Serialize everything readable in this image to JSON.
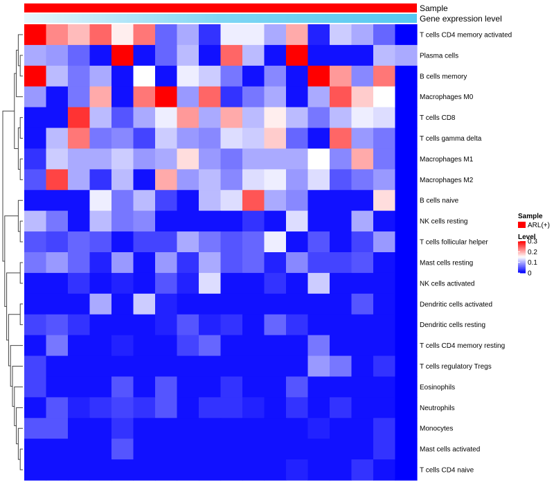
{
  "chart_data": {
    "type": "heatmap",
    "annotation_tracks": [
      {
        "name": "Sample",
        "color": "#ff0000"
      },
      {
        "name": "Gene expression level",
        "gradient": [
          "#e8f6fc",
          "#7fd6f4",
          "#55c8f0"
        ]
      }
    ],
    "rows": [
      "T cells CD4 memory activated",
      "Plasma cells",
      "B cells memory",
      "Macrophages M0",
      "T cells CD8",
      "T cells gamma delta",
      "Macrophages M1",
      "Macrophages M2",
      "B cells naive",
      "NK cells resting",
      "T cells follicular helper",
      "Mast cells resting",
      "NK cells activated",
      "Dendritic cells activated",
      "Dendritic cells resting",
      "T cells CD4 memory resting",
      "T cells regulatory  Tregs",
      "Eosinophils",
      "Neutrophils",
      "Monocytes",
      "Mast cells activated",
      "T cells CD4 naive"
    ],
    "n_columns": 18,
    "values": [
      [
        0.3,
        0.22,
        0.19,
        0.24,
        0.16,
        0.23,
        0.06,
        0.1,
        0.03,
        0.14,
        0.14,
        0.1,
        0.2,
        0.02,
        0.12,
        0.1,
        0.06,
        0.0
      ],
      [
        0.1,
        0.09,
        0.06,
        0.01,
        0.3,
        0.01,
        0.06,
        0.11,
        0.01,
        0.24,
        0.11,
        0.01,
        0.3,
        0.01,
        0.01,
        0.01,
        0.11,
        0.1
      ],
      [
        0.3,
        0.11,
        0.07,
        0.1,
        0.01,
        0.15,
        0.01,
        0.14,
        0.12,
        0.07,
        0.01,
        0.08,
        0.01,
        0.3,
        0.21,
        0.08,
        0.23,
        0.0
      ],
      [
        0.09,
        0.01,
        0.07,
        0.2,
        0.01,
        0.23,
        0.3,
        0.09,
        0.24,
        0.03,
        0.07,
        0.1,
        0.01,
        0.1,
        0.25,
        0.18,
        0.15,
        0.0
      ],
      [
        0.01,
        0.01,
        0.27,
        0.11,
        0.05,
        0.1,
        0.14,
        0.21,
        0.1,
        0.2,
        0.11,
        0.16,
        0.11,
        0.07,
        0.11,
        0.14,
        0.13,
        0.0
      ],
      [
        0.01,
        0.11,
        0.23,
        0.07,
        0.08,
        0.04,
        0.12,
        0.09,
        0.08,
        0.13,
        0.12,
        0.18,
        0.06,
        0.01,
        0.24,
        0.09,
        0.07,
        0.0
      ],
      [
        0.03,
        0.12,
        0.1,
        0.1,
        0.12,
        0.09,
        0.1,
        0.17,
        0.09,
        0.07,
        0.1,
        0.1,
        0.1,
        0.15,
        0.08,
        0.2,
        0.07,
        0.0
      ],
      [
        0.05,
        0.26,
        0.1,
        0.03,
        0.11,
        0.01,
        0.2,
        0.09,
        0.11,
        0.08,
        0.13,
        0.14,
        0.09,
        0.13,
        0.05,
        0.07,
        0.09,
        0.0
      ],
      [
        0.01,
        0.01,
        0.01,
        0.14,
        0.07,
        0.11,
        0.04,
        0.01,
        0.11,
        0.13,
        0.25,
        0.1,
        0.08,
        0.01,
        0.01,
        0.01,
        0.17,
        0.0
      ],
      [
        0.11,
        0.07,
        0.01,
        0.11,
        0.07,
        0.08,
        0.01,
        0.01,
        0.01,
        0.01,
        0.03,
        0.01,
        0.13,
        0.01,
        0.01,
        0.1,
        0.01,
        0.0
      ],
      [
        0.05,
        0.04,
        0.06,
        0.05,
        0.01,
        0.04,
        0.04,
        0.1,
        0.07,
        0.05,
        0.06,
        0.14,
        0.01,
        0.05,
        0.01,
        0.04,
        0.09,
        0.0
      ],
      [
        0.07,
        0.09,
        0.06,
        0.02,
        0.09,
        0.01,
        0.09,
        0.03,
        0.1,
        0.05,
        0.06,
        0.02,
        0.08,
        0.04,
        0.04,
        0.05,
        0.01,
        0.0
      ],
      [
        0.01,
        0.01,
        0.03,
        0.01,
        0.02,
        0.01,
        0.05,
        0.02,
        0.13,
        0.01,
        0.01,
        0.03,
        0.01,
        0.12,
        0.01,
        0.01,
        0.01,
        0.0
      ],
      [
        0.01,
        0.01,
        0.01,
        0.1,
        0.01,
        0.12,
        0.02,
        0.01,
        0.01,
        0.01,
        0.01,
        0.01,
        0.01,
        0.01,
        0.01,
        0.05,
        0.01,
        0.0
      ],
      [
        0.04,
        0.05,
        0.03,
        0.01,
        0.01,
        0.01,
        0.02,
        0.05,
        0.02,
        0.03,
        0.01,
        0.06,
        0.03,
        0.01,
        0.01,
        0.01,
        0.01,
        0.0
      ],
      [
        0.01,
        0.07,
        0.01,
        0.01,
        0.02,
        0.01,
        0.01,
        0.04,
        0.06,
        0.01,
        0.01,
        0.01,
        0.01,
        0.07,
        0.01,
        0.01,
        0.01,
        0.0
      ],
      [
        0.04,
        0.01,
        0.01,
        0.01,
        0.01,
        0.01,
        0.01,
        0.01,
        0.01,
        0.01,
        0.01,
        0.01,
        0.01,
        0.09,
        0.07,
        0.01,
        0.03,
        0.0
      ],
      [
        0.04,
        0.01,
        0.01,
        0.01,
        0.05,
        0.01,
        0.05,
        0.01,
        0.01,
        0.03,
        0.01,
        0.01,
        0.05,
        0.01,
        0.01,
        0.01,
        0.01,
        0.0
      ],
      [
        0.01,
        0.05,
        0.02,
        0.03,
        0.04,
        0.03,
        0.05,
        0.01,
        0.03,
        0.03,
        0.02,
        0.01,
        0.03,
        0.01,
        0.03,
        0.01,
        0.01,
        0.0
      ],
      [
        0.05,
        0.05,
        0.01,
        0.01,
        0.03,
        0.01,
        0.01,
        0.01,
        0.01,
        0.01,
        0.01,
        0.01,
        0.01,
        0.02,
        0.01,
        0.01,
        0.03,
        0.0
      ],
      [
        0.01,
        0.01,
        0.01,
        0.01,
        0.05,
        0.01,
        0.01,
        0.01,
        0.01,
        0.01,
        0.01,
        0.01,
        0.01,
        0.01,
        0.01,
        0.01,
        0.03,
        0.0
      ],
      [
        0.01,
        0.01,
        0.01,
        0.01,
        0.01,
        0.01,
        0.01,
        0.01,
        0.01,
        0.01,
        0.01,
        0.01,
        0.02,
        0.01,
        0.01,
        0.03,
        0.01,
        0.0
      ]
    ],
    "color_scale": {
      "min": 0,
      "mid": 0.15,
      "max": 0.3,
      "low": "#0000ff",
      "mid_color": "#ffffff",
      "high": "#ff0000"
    },
    "legend": {
      "sample_title": "Sample",
      "sample_entry": "ARL(+)",
      "sample_color": "#ff0000",
      "level_title": "Level",
      "ticks": [
        {
          "value": 0.3,
          "label": "0.3"
        },
        {
          "value": 0.2,
          "label": "0.2"
        },
        {
          "value": 0.1,
          "label": "0.1"
        },
        {
          "value": 0,
          "label": "0"
        }
      ]
    },
    "dendrogram": "row clustering tree, left side"
  }
}
